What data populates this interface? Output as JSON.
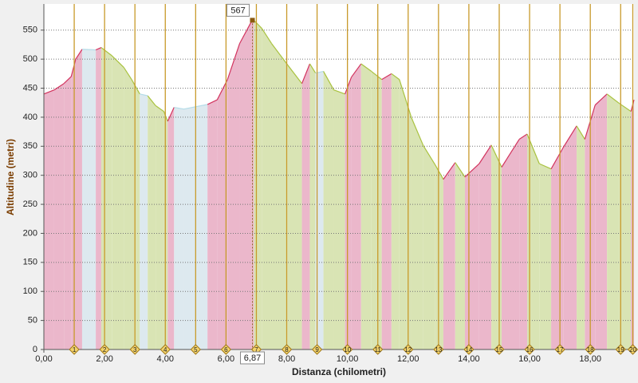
{
  "chart_data": {
    "type": "elevation-profile",
    "xlabel": "Distanza (chilometri)",
    "ylabel": "Altitudine (metri)",
    "x": [
      0,
      0.34,
      0.66,
      0.9,
      1.05,
      1.26,
      1.71,
      1.89,
      2.24,
      2.63,
      2.89,
      3.16,
      3.42,
      3.68,
      3.95,
      4.08,
      4.29,
      4.61,
      5.39,
      5.71,
      6.05,
      6.45,
      6.84,
      6.92,
      7.18,
      7.5,
      8.03,
      8.5,
      8.76,
      8.95,
      9.21,
      9.55,
      9.92,
      10.13,
      10.45,
      10.79,
      11.13,
      11.45,
      11.71,
      12.11,
      12.5,
      12.89,
      13.16,
      13.55,
      13.87,
      14.34,
      14.74,
      15.08,
      15.66,
      15.92,
      16.32,
      16.71,
      17.11,
      17.55,
      17.82,
      18.16,
      18.55,
      18.95,
      19.34,
      19.44
    ],
    "values": [
      440,
      447,
      458,
      470,
      500,
      517,
      516,
      520,
      506,
      486,
      465,
      440,
      437,
      420,
      410,
      393,
      417,
      414,
      422,
      430,
      465,
      527,
      565,
      567,
      553,
      527,
      490,
      458,
      492,
      476,
      479,
      447,
      440,
      469,
      492,
      479,
      465,
      475,
      465,
      399,
      351,
      318,
      293,
      322,
      297,
      320,
      352,
      314,
      362,
      371,
      320,
      311,
      348,
      385,
      362,
      421,
      440,
      424,
      410,
      430
    ],
    "colors": {
      "up_fill": "#ebb7cb",
      "up_line": "#d2335e",
      "down_fill": "#d9e4b4",
      "down_line": "#a9c23f",
      "flat_fill": "#dde9ef",
      "flat_line": "#b4dce8",
      "marker": "#c89a2a"
    },
    "xlim": [
      0,
      19.44
    ],
    "ylim": [
      0,
      595
    ],
    "xticks": [
      {
        "value": 0,
        "label": "0,00"
      },
      {
        "value": 2,
        "label": "2,00"
      },
      {
        "value": 4,
        "label": "4,00"
      },
      {
        "value": 6,
        "label": "6,00"
      },
      {
        "value": 8,
        "label": "8,00"
      },
      {
        "value": 10,
        "label": "10,00"
      },
      {
        "value": 12,
        "label": "12,00"
      },
      {
        "value": 14,
        "label": "14,00"
      },
      {
        "value": 16,
        "label": "16,00"
      },
      {
        "value": 18,
        "label": "18,00"
      }
    ],
    "yticks": [
      0,
      50,
      100,
      150,
      200,
      250,
      300,
      350,
      400,
      450,
      500,
      550
    ],
    "grid": true,
    "markers": [
      {
        "value": 1,
        "label": "1"
      },
      {
        "value": 2,
        "label": "2"
      },
      {
        "value": 3,
        "label": "3"
      },
      {
        "value": 4,
        "label": "4"
      },
      {
        "value": 5,
        "label": "5"
      },
      {
        "value": 6,
        "label": "6"
      },
      {
        "value": 7,
        "label": "7"
      },
      {
        "value": 8,
        "label": "8"
      },
      {
        "value": 9,
        "label": "9"
      },
      {
        "value": 10,
        "label": "10"
      },
      {
        "value": 11,
        "label": "11"
      },
      {
        "value": 12,
        "label": "12"
      },
      {
        "value": 13,
        "label": "13"
      },
      {
        "value": 14,
        "label": "14"
      },
      {
        "value": 15,
        "label": "15"
      },
      {
        "value": 16,
        "label": "16"
      },
      {
        "value": 17,
        "label": "17"
      },
      {
        "value": 18,
        "label": "18"
      },
      {
        "value": 19,
        "label": "19"
      },
      {
        "value": 19.4,
        "label": "20"
      }
    ],
    "cursor": {
      "x": {
        "value": 6.87,
        "label": "6,87"
      },
      "y": 567
    }
  }
}
